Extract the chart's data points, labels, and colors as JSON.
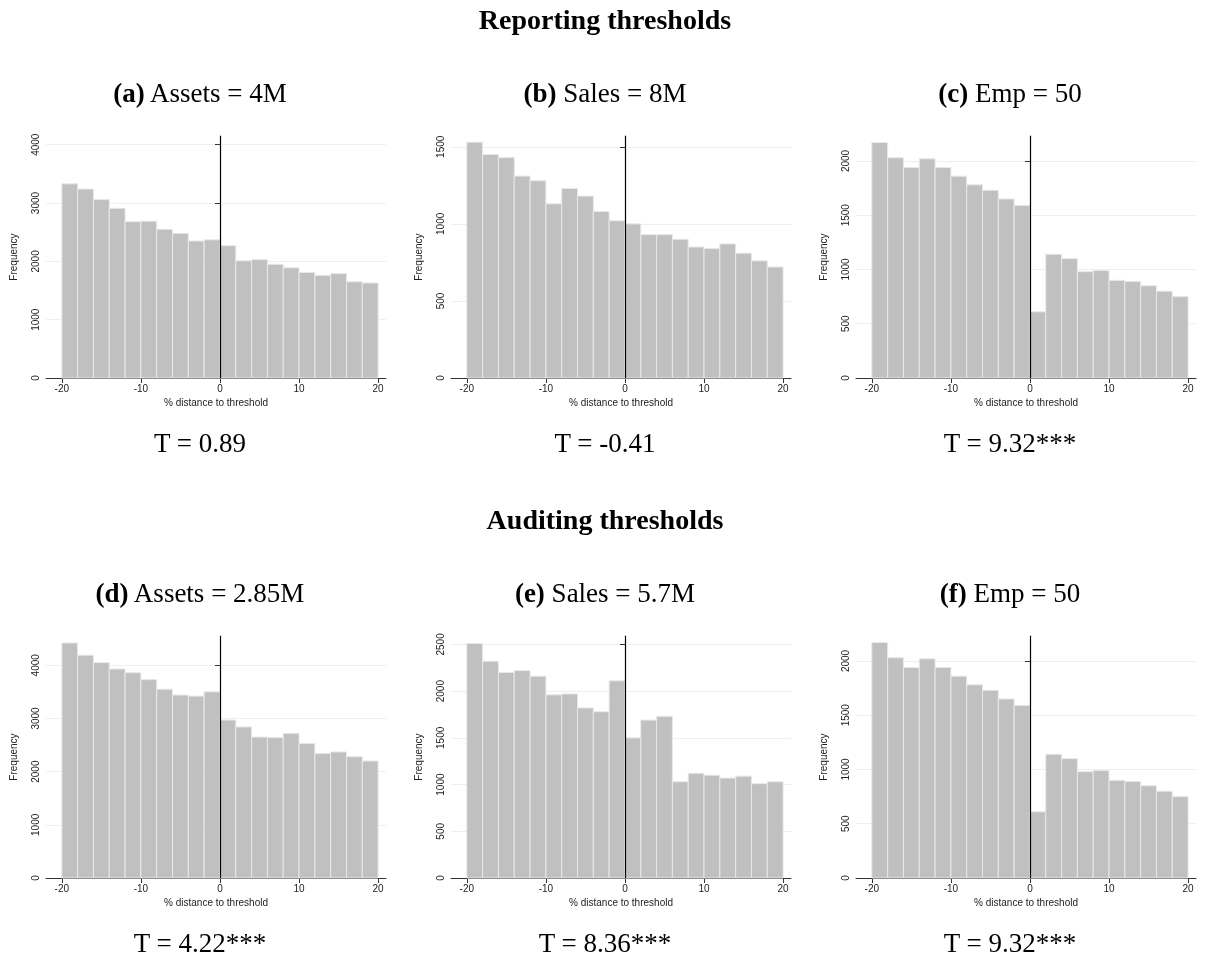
{
  "chart_data": [
    {
      "type": "histogram",
      "title": "(a) Assets = 4M",
      "xlabel": "% distance to threshold",
      "ylabel": "Frequency",
      "color": "#c0c0c0",
      "bins": [
        -20,
        -18,
        -16,
        -14,
        -12,
        -10,
        -8,
        -6,
        -4,
        -2,
        0,
        2,
        4,
        6,
        8,
        10,
        12,
        14,
        16,
        18,
        20
      ],
      "values": [
        3330,
        3240,
        3060,
        2910,
        2680,
        2690,
        2550,
        2480,
        2350,
        2370,
        2270,
        2010,
        2030,
        1950,
        1890,
        1810,
        1760,
        1790,
        1650,
        1630
      ],
      "xlim": [
        -22,
        21
      ],
      "xticks": [
        -20,
        -10,
        0,
        10,
        20
      ],
      "ylim": [
        0,
        4150
      ],
      "yticks": [
        0,
        1000,
        2000,
        3000,
        4000
      ],
      "grid": "y",
      "ref_lines": [
        {
          "axis": "x",
          "value": 0,
          "color": "#000000"
        }
      ],
      "annotations": [
        "T = 0.89"
      ]
    },
    {
      "type": "histogram",
      "title": "(b) Sales = 8M",
      "xlabel": "% distance to threshold",
      "ylabel": "Frequency",
      "color": "#c0c0c0",
      "bins": [
        -20,
        -18,
        -16,
        -14,
        -12,
        -10,
        -8,
        -6,
        -4,
        -2,
        0,
        2,
        4,
        6,
        8,
        10,
        12,
        14,
        16,
        18,
        20
      ],
      "values": [
        1530,
        1450,
        1430,
        1310,
        1280,
        1130,
        1230,
        1180,
        1080,
        1020,
        1000,
        930,
        930,
        900,
        850,
        840,
        870,
        810,
        760,
        720
      ],
      "xlim": [
        -22,
        21
      ],
      "xticks": [
        -20,
        -10,
        0,
        10,
        20
      ],
      "ylim": [
        0,
        1570
      ],
      "yticks": [
        0,
        500,
        1000,
        1500
      ],
      "grid": "y",
      "ref_lines": [
        {
          "axis": "x",
          "value": 0,
          "color": "#000000"
        }
      ],
      "annotations": [
        "Reporting thresholds",
        "T = -0.41"
      ]
    },
    {
      "type": "histogram",
      "title": "(c) Emp = 50",
      "xlabel": "% distance to threshold",
      "ylabel": "Frequency",
      "color": "#c0c0c0",
      "bins": [
        -20,
        -18,
        -16,
        -14,
        -12,
        -10,
        -8,
        -6,
        -4,
        -2,
        0,
        2,
        4,
        6,
        8,
        10,
        12,
        14,
        16,
        18,
        20
      ],
      "values": [
        2170,
        2030,
        1940,
        2020,
        1940,
        1860,
        1780,
        1730,
        1650,
        1590,
        610,
        1140,
        1100,
        980,
        990,
        900,
        890,
        850,
        800,
        750
      ],
      "xlim": [
        -22,
        21
      ],
      "xticks": [
        -20,
        -10,
        0,
        10,
        20
      ],
      "ylim": [
        0,
        2230
      ],
      "yticks": [
        0,
        500,
        1000,
        1500,
        2000
      ],
      "grid": "y",
      "ref_lines": [
        {
          "axis": "x",
          "value": 0,
          "color": "#000000"
        }
      ],
      "annotations": [
        "T = 9.32***"
      ]
    },
    {
      "type": "histogram",
      "title": "(d) Assets = 2.85M",
      "xlabel": "% distance to threshold",
      "ylabel": "Frequency",
      "color": "#c0c0c0",
      "bins": [
        -20,
        -18,
        -16,
        -14,
        -12,
        -10,
        -8,
        -6,
        -4,
        -2,
        0,
        2,
        4,
        6,
        8,
        10,
        12,
        14,
        16,
        18,
        20
      ],
      "values": [
        4420,
        4190,
        4050,
        3930,
        3860,
        3730,
        3550,
        3440,
        3420,
        3500,
        2970,
        2840,
        2650,
        2640,
        2720,
        2530,
        2340,
        2370,
        2280,
        2200
      ],
      "xlim": [
        -22,
        21
      ],
      "xticks": [
        -20,
        -10,
        0,
        10,
        20
      ],
      "ylim": [
        0,
        4550
      ],
      "yticks": [
        0,
        1000,
        2000,
        3000,
        4000
      ],
      "grid": "y",
      "ref_lines": [
        {
          "axis": "x",
          "value": 0,
          "color": "#000000"
        }
      ],
      "annotations": [
        "T = 4.22***"
      ]
    },
    {
      "type": "histogram",
      "title": "(e) Sales = 5.7M",
      "xlabel": "% distance to threshold",
      "ylabel": "Frequency",
      "color": "#c0c0c0",
      "bins": [
        -20,
        -18,
        -16,
        -14,
        -12,
        -10,
        -8,
        -6,
        -4,
        -2,
        0,
        2,
        4,
        6,
        8,
        10,
        12,
        14,
        16,
        18,
        20
      ],
      "values": [
        2510,
        2320,
        2200,
        2220,
        2160,
        1960,
        1970,
        1820,
        1780,
        2110,
        1500,
        1690,
        1730,
        1030,
        1120,
        1100,
        1070,
        1090,
        1010,
        1030
      ],
      "xlim": [
        -22,
        21
      ],
      "xticks": [
        -20,
        -10,
        0,
        10,
        20
      ],
      "ylim": [
        0,
        2590
      ],
      "yticks": [
        0,
        500,
        1000,
        1500,
        2000,
        2500
      ],
      "grid": "y",
      "ref_lines": [
        {
          "axis": "x",
          "value": 0,
          "color": "#000000"
        }
      ],
      "annotations": [
        "Auditing thresholds",
        "T = 8.36***"
      ]
    },
    {
      "type": "histogram",
      "title": "(f) Emp = 50",
      "xlabel": "% distance to threshold",
      "ylabel": "Frequency",
      "color": "#c0c0c0",
      "bins": [
        -20,
        -18,
        -16,
        -14,
        -12,
        -10,
        -8,
        -6,
        -4,
        -2,
        0,
        2,
        4,
        6,
        8,
        10,
        12,
        14,
        16,
        18,
        20
      ],
      "values": [
        2170,
        2030,
        1940,
        2020,
        1940,
        1860,
        1780,
        1730,
        1650,
        1590,
        610,
        1140,
        1100,
        980,
        990,
        900,
        890,
        850,
        800,
        750
      ],
      "xlim": [
        -22,
        21
      ],
      "xticks": [
        -20,
        -10,
        0,
        10,
        20
      ],
      "ylim": [
        0,
        2230
      ],
      "yticks": [
        0,
        500,
        1000,
        1500,
        2000
      ],
      "grid": "y",
      "ref_lines": [
        {
          "axis": "x",
          "value": 0,
          "color": "#000000"
        }
      ],
      "annotations": [
        "T = 9.32***"
      ]
    }
  ]
}
